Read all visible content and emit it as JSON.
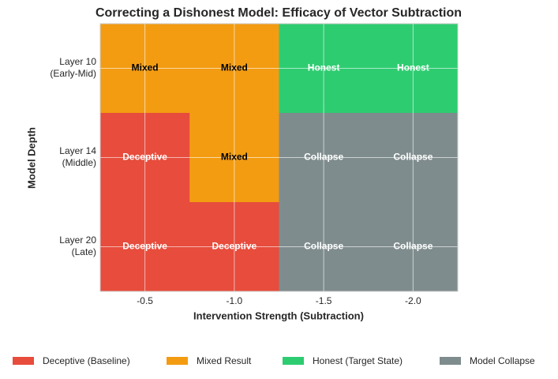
{
  "chart_data": {
    "type": "heatmap",
    "title": "Correcting a Dishonest Model: Efficacy of Vector Subtraction",
    "x_label": "Intervention Strength (Subtraction)",
    "y_label": "Model Depth",
    "categories": [
      "-0.5",
      "-1.0",
      "-1.5",
      "-2.0"
    ],
    "y_categories": [
      [
        "Layer 10",
        "(Early-Mid)"
      ],
      [
        "Layer 14",
        "(Middle)"
      ],
      [
        "Layer 20",
        "(Late)"
      ]
    ],
    "cells": [
      [
        {
          "label": "Mixed",
          "color": "#f39c12"
        },
        {
          "label": "Mixed",
          "color": "#f39c12"
        },
        {
          "label": "Honest",
          "color": "#2ecc71"
        },
        {
          "label": "Honest",
          "color": "#2ecc71"
        }
      ],
      [
        {
          "label": "Deceptive",
          "color": "#e74c3c"
        },
        {
          "label": "Mixed",
          "color": "#f39c12"
        },
        {
          "label": "Collapse",
          "color": "#7f8c8d"
        },
        {
          "label": "Collapse",
          "color": "#7f8c8d"
        }
      ],
      [
        {
          "label": "Deceptive",
          "color": "#e74c3c"
        },
        {
          "label": "Deceptive",
          "color": "#e74c3c"
        },
        {
          "label": "Collapse",
          "color": "#7f8c8d"
        },
        {
          "label": "Collapse",
          "color": "#7f8c8d"
        }
      ]
    ],
    "series": [
      {
        "name": "Deceptive (Baseline)",
        "color": "#e74c3c"
      },
      {
        "name": "Mixed Result",
        "color": "#f39c12"
      },
      {
        "name": "Honest (Target State)",
        "color": "#2ecc71"
      },
      {
        "name": "Model Collapse",
        "color": "#7f8c8d"
      }
    ],
    "grid": true,
    "legend": "bottom"
  }
}
